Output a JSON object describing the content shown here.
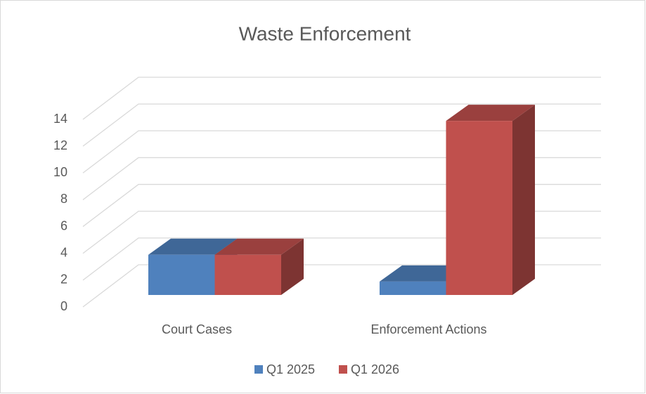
{
  "chart_data": {
    "type": "bar3d",
    "title": "Waste Enforcement",
    "categories": [
      "Court Cases",
      "Enforcement Actions"
    ],
    "series": [
      {
        "name": "Q1 2025",
        "color": "#4f81bd",
        "values": [
          3,
          1
        ]
      },
      {
        "name": "Q1 2026",
        "color": "#c0504d",
        "values": [
          3,
          13
        ]
      }
    ],
    "ylim": [
      0,
      14
    ],
    "yticks": [
      0,
      2,
      4,
      6,
      8,
      10,
      12,
      14
    ],
    "grid": true,
    "legend": "bottom"
  }
}
